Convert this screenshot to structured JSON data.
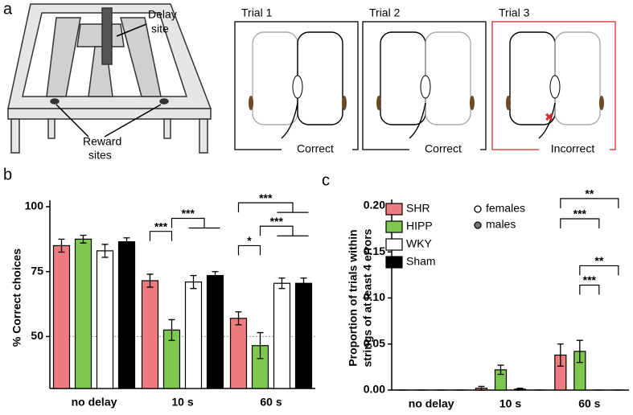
{
  "panels": {
    "a": {
      "label": "a",
      "delay_site": [
        "Delay",
        "site"
      ],
      "reward_sites": [
        "Reward",
        "sites"
      ],
      "trials": [
        {
          "title": "Trial 1",
          "outcome": "Correct"
        },
        {
          "title": "Trial 2",
          "outcome": "Correct"
        },
        {
          "title": "Trial 3",
          "outcome": "Incorrect"
        }
      ]
    },
    "b": {
      "label": "b"
    },
    "c": {
      "label": "c"
    }
  },
  "chart_data": [
    {
      "type": "bar",
      "ylabel": [
        "% Correct choices"
      ],
      "categories": [
        "no delay",
        "10 s",
        "60 s"
      ],
      "series": [
        {
          "name": "SHR",
          "color": "#ee7b7f",
          "values": [
            85,
            71.5,
            57
          ],
          "errors": [
            2.5,
            2.5,
            2.5
          ]
        },
        {
          "name": "HIPP",
          "color": "#7ec850",
          "values": [
            87.5,
            52.5,
            46.5
          ],
          "errors": [
            1.5,
            4,
            5
          ]
        },
        {
          "name": "WKY",
          "color": "#ffffff",
          "values": [
            83,
            71,
            70.5
          ],
          "errors": [
            2.5,
            2.5,
            2
          ]
        },
        {
          "name": "Sham",
          "color": "#000000",
          "values": [
            86.5,
            73.5,
            70.5
          ],
          "errors": [
            1.5,
            1.5,
            2
          ]
        }
      ],
      "ylim": [
        30,
        100
      ],
      "yticks": [
        50,
        75,
        100
      ],
      "refline": 50,
      "legend": false,
      "brackets": [
        {
          "label": "***",
          "category": 1,
          "from": [
            "SHR"
          ],
          "to": [
            "HIPP"
          ],
          "y": 90.5
        },
        {
          "label": "***",
          "category": 1,
          "from": [
            "HIPP"
          ],
          "to": [
            "WKY",
            "Sham"
          ],
          "y": 95.5
        },
        {
          "label": "*",
          "category": 2,
          "from": [
            "SHR"
          ],
          "to": [
            "HIPP"
          ],
          "y": 85
        },
        {
          "label": "***",
          "category": 2,
          "from": [
            "HIPP"
          ],
          "to": [
            "WKY",
            "Sham"
          ],
          "y": 92.5
        },
        {
          "label": "***",
          "category": 2,
          "from": [
            "SHR"
          ],
          "to": [
            "WKY",
            "Sham"
          ],
          "y": 101.5
        }
      ]
    },
    {
      "type": "bar",
      "ylabel": [
        "Proportion of trials within",
        "strings of at least 4 errors"
      ],
      "categories": [
        "no delay",
        "10 s",
        "60 s"
      ],
      "series": [
        {
          "name": "SHR",
          "color": "#ee7b7f",
          "values": [
            0,
            0.002,
            0.038
          ],
          "errors": [
            0,
            0.002,
            0.012
          ]
        },
        {
          "name": "HIPP",
          "color": "#7ec850",
          "values": [
            0,
            0.022,
            0.042
          ],
          "errors": [
            0,
            0.005,
            0.012
          ]
        },
        {
          "name": "WKY",
          "color": "#ffffff",
          "values": [
            0,
            0.001,
            0
          ],
          "errors": [
            0,
            0.001,
            0
          ]
        },
        {
          "name": "Sham",
          "color": "#000000",
          "values": [
            0,
            0,
            0
          ],
          "errors": [
            0,
            0,
            0
          ]
        }
      ],
      "ylim": [
        0,
        0.2
      ],
      "yticks": [
        {
          "value": 0,
          "label": "0.00"
        },
        {
          "value": 0.05,
          "label": "0.05"
        },
        {
          "value": 0.1,
          "label": "0.10"
        },
        {
          "value": 0.15,
          "label": "0.15"
        },
        {
          "value": 0.2,
          "label": "0.20"
        }
      ],
      "legend": true,
      "marker_legend": [
        "females",
        "males"
      ],
      "brackets": [
        {
          "label": "**",
          "category": 2,
          "from": [
            "SHR"
          ],
          "to": [
            "Sham"
          ],
          "y": 0.208
        },
        {
          "label": "***",
          "category": 2,
          "from": [
            "SHR"
          ],
          "to": [
            "WKY"
          ],
          "y": 0.186
        },
        {
          "label": "**",
          "category": 2,
          "from": [
            "HIPP"
          ],
          "to": [
            "Sham"
          ],
          "y": 0.135
        },
        {
          "label": "***",
          "category": 2,
          "from": [
            "HIPP"
          ],
          "to": [
            "WKY"
          ],
          "y": 0.114
        }
      ]
    }
  ]
}
